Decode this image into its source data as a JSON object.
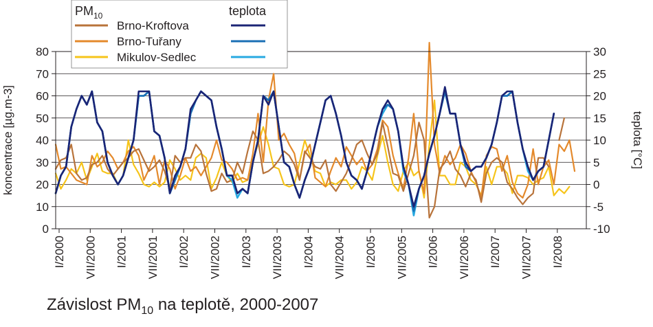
{
  "caption": {
    "prefix": "Závislost PM",
    "sub": "10",
    "suffix": " na teplotě, 2000-2007"
  },
  "chart_data": {
    "type": "line",
    "x_unit": "month",
    "x_start": "2000-01",
    "x_ticks": [
      {
        "month": 0,
        "label": "I/2000"
      },
      {
        "month": 6,
        "label": "VII/2000"
      },
      {
        "month": 12,
        "label": "I/2001"
      },
      {
        "month": 18,
        "label": "VII/2001"
      },
      {
        "month": 24,
        "label": "I/2002"
      },
      {
        "month": 30,
        "label": "VII/2002"
      },
      {
        "month": 36,
        "label": "I/2003"
      },
      {
        "month": 42,
        "label": "VII/2003"
      },
      {
        "month": 48,
        "label": "I/2004"
      },
      {
        "month": 54,
        "label": "VII/2004"
      },
      {
        "month": 60,
        "label": "I/2005"
      },
      {
        "month": 66,
        "label": "VII/2005"
      },
      {
        "month": 72,
        "label": "I/2006"
      },
      {
        "month": 78,
        "label": "VII/2006"
      },
      {
        "month": 84,
        "label": "I/2007"
      },
      {
        "month": 90,
        "label": "VII/2007"
      },
      {
        "month": 96,
        "label": "I/2008"
      }
    ],
    "ylabel": "koncentrace [µg.m-3]",
    "ylim": [
      0,
      80
    ],
    "y_ticks": [
      0,
      10,
      20,
      30,
      40,
      50,
      60,
      70,
      80
    ],
    "y2label": "teplota [°C]",
    "y2lim": [
      -10,
      30
    ],
    "y2_ticks": [
      -10,
      -5,
      0,
      5,
      10,
      15,
      20,
      25,
      30
    ],
    "grid": true,
    "legend": {
      "pm_title": "PM",
      "pm_sub": "10",
      "temp_title": "teplota",
      "position": "top-left"
    },
    "series": [
      {
        "name": "Brno-Kroftova",
        "axis": "left",
        "color": "#b8733a",
        "values": [
          27,
          31,
          32,
          38,
          25,
          22,
          23,
          29,
          30,
          33,
          27,
          24,
          27,
          30,
          32,
          35,
          36,
          31,
          26,
          28,
          31,
          26,
          18,
          33,
          30,
          32,
          32,
          38,
          35,
          25,
          17,
          18,
          25,
          21,
          22,
          30,
          25,
          35,
          44,
          40,
          25,
          26,
          28,
          31,
          35,
          33,
          29,
          22,
          35,
          32,
          28,
          27,
          31,
          20,
          17,
          21,
          25,
          31,
          38,
          40,
          34,
          29,
          34,
          48,
          37,
          25,
          24,
          17,
          25,
          33,
          48,
          40,
          5,
          10,
          27,
          30,
          35,
          27,
          24,
          19,
          25,
          22,
          12,
          25,
          30,
          32,
          30,
          21,
          18,
          14,
          11,
          14,
          16,
          32,
          32,
          28,
          null,
          40,
          50
        ]
      },
      {
        "name": "Brno-Tuřany",
        "axis": "left",
        "color": "#e4892b",
        "values": [
          38,
          27,
          28,
          25,
          22,
          21,
          20,
          33,
          28,
          30,
          35,
          32,
          27,
          30,
          35,
          37,
          33,
          22,
          27,
          33,
          20,
          31,
          27,
          18,
          24,
          32,
          26,
          28,
          24,
          28,
          32,
          40,
          31,
          30,
          27,
          22,
          23,
          22,
          34,
          52,
          30,
          58,
          70,
          40,
          43,
          38,
          34,
          22,
          34,
          38,
          23,
          21,
          19,
          26,
          32,
          28,
          37,
          33,
          29,
          32,
          26,
          29,
          36,
          49,
          46,
          33,
          25,
          18,
          32,
          52,
          26,
          16,
          84,
          38,
          25,
          33,
          29,
          32,
          38,
          34,
          26,
          21,
          14,
          33,
          37,
          36,
          26,
          33,
          21,
          16,
          14,
          20,
          36,
          20,
          28,
          31,
          20,
          38,
          35,
          40,
          26
        ]
      },
      {
        "name": "Mikulov-Sedlec",
        "axis": "left",
        "color": "#f6c41a",
        "values": [
          25,
          18,
          22,
          27,
          25,
          30,
          22,
          28,
          34,
          26,
          25,
          25,
          20,
          24,
          40,
          29,
          25,
          20,
          19,
          21,
          19,
          21,
          31,
          27,
          22,
          24,
          22,
          32,
          34,
          32,
          18,
          23,
          30,
          24,
          21,
          25,
          21,
          22,
          31,
          38,
          46,
          38,
          28,
          27,
          20,
          19,
          20,
          30,
          40,
          33,
          26,
          25,
          19,
          21,
          20,
          22,
          22,
          18,
          21,
          28,
          26,
          22,
          33,
          42,
          30,
          20,
          17,
          26,
          30,
          24,
          26,
          14,
          38,
          58,
          24,
          24,
          20,
          20,
          30,
          28,
          22,
          20,
          15,
          28,
          20,
          28,
          28,
          25,
          16,
          24,
          24,
          23,
          20,
          22,
          23,
          28,
          15,
          18,
          16,
          19
        ]
      },
      {
        "name": "Brno-Kroftova",
        "axis": "right",
        "color": "#1b2475",
        "values": [
          -2,
          2,
          4,
          13,
          17,
          20,
          18,
          21,
          14,
          12,
          5,
          2,
          0,
          2,
          6,
          10,
          21,
          21,
          21,
          12,
          11,
          6,
          -2,
          2,
          4,
          8,
          17,
          19,
          21,
          20,
          19,
          13,
          8,
          2,
          2,
          -2,
          -1,
          -2,
          5,
          10,
          20,
          18,
          21,
          13,
          5,
          4,
          0,
          -3,
          1,
          4,
          9,
          14,
          19,
          20,
          16,
          11,
          5,
          2,
          1,
          -1,
          3,
          8,
          13,
          17,
          19,
          17,
          12,
          4,
          0,
          -5,
          -1,
          2,
          7,
          11,
          16,
          22,
          16,
          16,
          9,
          5,
          3,
          4,
          4,
          6,
          9,
          14,
          20,
          21,
          21,
          14,
          8,
          4,
          1,
          3,
          4,
          10,
          16
        ]
      },
      {
        "name": "Brno-Tuřany",
        "axis": "right",
        "color": "#1a6fb5",
        "values": [
          -2,
          2,
          4,
          13,
          17,
          20,
          18,
          21,
          14,
          12,
          5,
          2,
          0,
          2,
          6,
          10,
          20,
          20,
          21,
          12,
          11,
          6,
          -2,
          1,
          4,
          8,
          16,
          19,
          21,
          20,
          19,
          13,
          8,
          2,
          2,
          -2,
          -1,
          -2,
          5,
          10,
          20,
          19,
          21,
          13,
          5,
          4,
          0,
          -3,
          1,
          4,
          9,
          14,
          19,
          20,
          16,
          11,
          5,
          2,
          1,
          -1,
          3,
          8,
          13,
          17,
          18,
          17,
          12,
          4,
          0,
          -6,
          -1,
          2,
          7,
          11,
          16,
          21,
          16,
          16,
          9,
          4,
          3,
          4,
          4,
          6,
          9,
          14,
          20,
          20,
          21,
          14,
          8,
          4,
          1,
          3,
          4,
          10,
          16
        ]
      },
      {
        "name": "Mikulov-Sedlec",
        "axis": "right",
        "color": "#27a9e1",
        "values": [
          -2,
          2,
          4,
          13,
          17,
          20,
          18,
          21,
          14,
          12,
          5,
          2,
          0,
          2,
          6,
          10,
          20,
          20,
          21,
          12,
          11,
          6,
          -2,
          1,
          4,
          8,
          16,
          19,
          21,
          20,
          19,
          13,
          8,
          2,
          1,
          -3,
          -1,
          -2,
          5,
          10,
          20,
          19,
          21,
          13,
          5,
          4,
          0,
          -3,
          1,
          4,
          9,
          14,
          19,
          20,
          16,
          11,
          5,
          2,
          1,
          -1,
          3,
          8,
          13,
          16,
          18,
          17,
          12,
          3,
          0,
          -7,
          -1,
          2,
          7,
          11,
          16,
          21,
          16,
          16,
          9,
          4,
          3,
          4,
          4,
          6,
          9,
          14,
          20,
          20,
          21,
          14,
          8,
          3,
          1,
          3,
          4,
          10,
          16
        ]
      }
    ]
  }
}
